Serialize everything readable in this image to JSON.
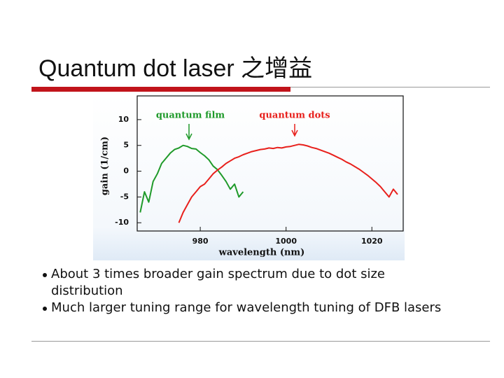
{
  "slide": {
    "title": "Quantum dot laser 之增益",
    "bullets": [
      "About 3 times broader gain spectrum due to dot size distribution",
      "Much larger tuning range for wavelength tuning of DFB lasers"
    ]
  },
  "chart_data": {
    "type": "line",
    "xlabel": "wavelength (nm)",
    "ylabel": "gain (1/cm)",
    "annotations": [
      "quantum film",
      "quantum dots"
    ],
    "x": [
      966,
      967,
      968,
      969,
      970,
      971,
      972,
      973,
      974,
      975,
      976,
      977,
      978,
      979,
      980,
      981,
      982,
      983,
      984,
      985,
      986,
      987,
      988,
      989,
      990,
      991,
      992,
      993,
      994,
      995,
      996,
      997,
      998,
      999,
      1000,
      1001,
      1002,
      1003,
      1004,
      1005,
      1006,
      1007,
      1008,
      1009,
      1010,
      1011,
      1012,
      1013,
      1014,
      1015,
      1016,
      1017,
      1018,
      1019,
      1020,
      1021,
      1022,
      1023,
      1024,
      1025,
      1026
    ],
    "series": [
      {
        "color": "#1f9a2a",
        "values": [
          -8,
          -4,
          -6,
          -2,
          -0.5,
          1.5,
          2.5,
          3.5,
          4.2,
          4.5,
          5,
          4.8,
          4.4,
          4.3,
          3.6,
          3,
          2.2,
          1,
          0.3,
          -0.8,
          -2,
          -3.5,
          -2.5,
          -5,
          -4,
          null,
          null,
          null,
          null,
          null,
          null,
          null,
          null,
          null,
          null,
          null,
          null,
          null,
          null,
          null,
          null,
          null,
          null,
          null,
          null,
          null,
          null,
          null,
          null,
          null,
          null,
          null,
          null,
          null,
          null,
          null,
          null,
          null,
          null,
          null,
          null
        ]
      },
      {
        "color": "#e8201c",
        "values": [
          null,
          null,
          null,
          null,
          null,
          null,
          null,
          null,
          null,
          -10,
          -8,
          -6.5,
          -5,
          -4,
          -3,
          -2.5,
          -1.5,
          -0.5,
          0.2,
          0.8,
          1.5,
          2,
          2.5,
          2.8,
          3.2,
          3.5,
          3.8,
          4,
          4.2,
          4.3,
          4.5,
          4.4,
          4.6,
          4.5,
          4.7,
          4.8,
          5,
          5.2,
          5.1,
          4.9,
          4.6,
          4.4,
          4.1,
          3.8,
          3.5,
          3.1,
          2.7,
          2.3,
          1.8,
          1.4,
          0.9,
          0.4,
          -0.2,
          -0.8,
          -1.5,
          -2.2,
          -3,
          -4,
          -5,
          -3.5,
          -4.5
        ]
      }
    ],
    "xlim": [
      965.3,
      1027.3
    ],
    "ylim": [
      -11.6,
      14.6
    ],
    "xticks": [
      980,
      1000,
      1020
    ],
    "yticks": [
      10,
      5,
      0,
      -5,
      -10
    ]
  }
}
